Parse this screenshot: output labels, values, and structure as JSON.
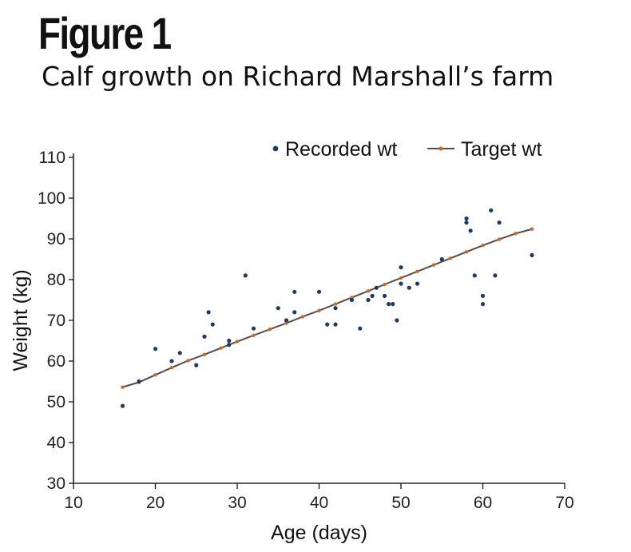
{
  "figure": {
    "title": "Figure 1",
    "subtitle": "Calf growth on Richard Marshall’s farm"
  },
  "colors": {
    "recorded": "#1f3a68",
    "target_line": "#5b4a45",
    "target_marker": "#c8692a",
    "axis": "#222222"
  },
  "chart_data": {
    "type": "scatter",
    "xlabel": "Age (days)",
    "ylabel": "Weight (kg)",
    "xlim": [
      10,
      70
    ],
    "ylim": [
      30,
      110
    ],
    "x_ticks": [
      10,
      20,
      30,
      40,
      50,
      60,
      70
    ],
    "y_ticks": [
      30,
      40,
      50,
      60,
      70,
      80,
      90,
      100,
      110
    ],
    "grid": false,
    "legend_position": "top-right",
    "series": [
      {
        "name": "Recorded wt",
        "kind": "scatter",
        "points": [
          [
            16,
            49
          ],
          [
            18,
            55
          ],
          [
            20,
            63
          ],
          [
            22,
            60
          ],
          [
            23,
            62
          ],
          [
            25,
            59
          ],
          [
            26,
            66
          ],
          [
            26.5,
            72
          ],
          [
            27,
            69
          ],
          [
            29,
            64
          ],
          [
            29,
            65
          ],
          [
            31,
            81
          ],
          [
            32,
            68
          ],
          [
            35,
            73
          ],
          [
            36,
            70
          ],
          [
            37,
            77
          ],
          [
            37,
            72
          ],
          [
            40,
            77
          ],
          [
            41,
            69
          ],
          [
            42,
            73
          ],
          [
            42,
            69
          ],
          [
            44,
            75
          ],
          [
            45,
            68
          ],
          [
            46,
            75
          ],
          [
            46.5,
            76
          ],
          [
            47,
            78
          ],
          [
            48,
            76
          ],
          [
            48.5,
            74
          ],
          [
            49,
            74
          ],
          [
            49.5,
            70
          ],
          [
            50,
            83
          ],
          [
            50,
            79
          ],
          [
            51,
            78
          ],
          [
            52,
            79
          ],
          [
            55,
            85
          ],
          [
            58,
            95
          ],
          [
            58,
            94
          ],
          [
            58.5,
            92
          ],
          [
            59,
            81
          ],
          [
            60,
            74
          ],
          [
            60,
            76
          ],
          [
            61,
            97
          ],
          [
            61.5,
            81
          ],
          [
            62,
            94
          ],
          [
            66,
            86
          ]
        ]
      },
      {
        "name": "Target wt",
        "kind": "line",
        "x": [
          16,
          18,
          20,
          22,
          24,
          26,
          28,
          30,
          32,
          34,
          36,
          38,
          40,
          42,
          44,
          46,
          48,
          50,
          52,
          54,
          56,
          58,
          60,
          62,
          64,
          66
        ],
        "y": [
          53.6,
          54.8,
          56.6,
          58.4,
          60.1,
          61.6,
          63.2,
          64.8,
          66.3,
          67.8,
          69.3,
          70.9,
          72.4,
          74.0,
          75.6,
          77.2,
          78.8,
          80.4,
          82.0,
          83.6,
          85.2,
          86.8,
          88.4,
          89.9,
          91.3,
          92.4
        ]
      }
    ]
  }
}
